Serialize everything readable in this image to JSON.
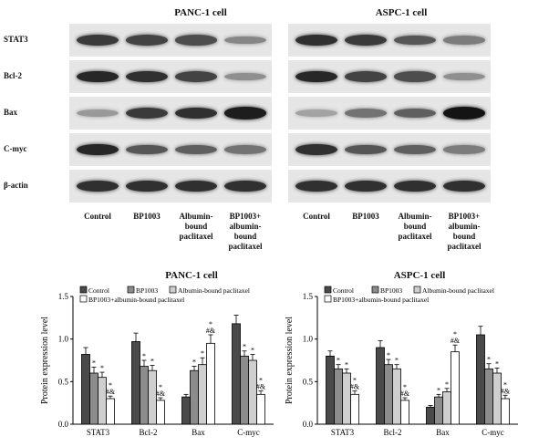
{
  "blots": [
    {
      "title": "PANC-1 cell",
      "rows": [
        {
          "label": "STAT3",
          "bands": [
            0.75,
            0.7,
            0.65,
            0.35
          ]
        },
        {
          "label": "Bcl-2",
          "bands": [
            0.85,
            0.8,
            0.7,
            0.3
          ]
        },
        {
          "label": "Bax",
          "bands": [
            0.25,
            0.75,
            0.8,
            0.9
          ]
        },
        {
          "label": "C-myc",
          "bands": [
            0.85,
            0.6,
            0.55,
            0.45
          ]
        },
        {
          "label": "β-actin",
          "bands": [
            0.8,
            0.8,
            0.8,
            0.8
          ]
        }
      ],
      "lanes": [
        "Control",
        "BP1003",
        "Albumin-\nbound\npaclitaxel",
        "BP1003+\nalbumin-\nbound\npaclitaxel"
      ]
    },
    {
      "title": "ASPC-1 cell",
      "rows": [
        {
          "label": "STAT3",
          "bands": [
            0.8,
            0.75,
            0.6,
            0.4
          ]
        },
        {
          "label": "Bcl-2",
          "bands": [
            0.85,
            0.7,
            0.65,
            0.3
          ]
        },
        {
          "label": "Bax",
          "bands": [
            0.2,
            0.45,
            0.55,
            0.95
          ]
        },
        {
          "label": "C-myc",
          "bands": [
            0.8,
            0.6,
            0.55,
            0.4
          ]
        },
        {
          "label": "β-actin",
          "bands": [
            0.8,
            0.8,
            0.8,
            0.8
          ]
        }
      ],
      "lanes": [
        "Control",
        "BP1003",
        "Albumin-\nbound\npaclitaxel",
        "BP1003+\nalbumin-\nbound\npaclitaxel"
      ]
    }
  ],
  "chart_data": [
    {
      "type": "bar",
      "title": "PANC-1 cell",
      "ylabel": "Protein expression level",
      "ylim": [
        0,
        1.5
      ],
      "yticks": [
        "0.0",
        "0.5",
        "1.0",
        "1.5"
      ],
      "categories": [
        "STAT3",
        "Bcl-2",
        "Bax",
        "C-myc"
      ],
      "series": [
        {
          "name": "Control",
          "color": "#4a4a4a",
          "values": [
            0.82,
            0.97,
            0.32,
            1.18
          ],
          "errors": [
            0.08,
            0.1,
            0.03,
            0.1
          ]
        },
        {
          "name": "BP1003",
          "color": "#8c8c8c",
          "values": [
            0.6,
            0.68,
            0.63,
            0.8
          ],
          "errors": [
            0.07,
            0.07,
            0.05,
            0.06
          ]
        },
        {
          "name": "Albumin-bound paclitaxel",
          "color": "#cfcfcf",
          "values": [
            0.55,
            0.63,
            0.7,
            0.75
          ],
          "errors": [
            0.06,
            0.06,
            0.08,
            0.07
          ]
        },
        {
          "name": "BP1003+albumin-bound paclitaxel",
          "color": "#ffffff",
          "values": [
            0.3,
            0.28,
            0.95,
            0.35
          ],
          "errors": [
            0.03,
            0.03,
            0.1,
            0.04
          ]
        }
      ],
      "annotations": [
        [
          "",
          "*",
          "*",
          "*\n#&"
        ],
        [
          "",
          "*",
          "*",
          "*\n#&"
        ],
        [
          "",
          "*",
          "*",
          "*\n#&"
        ],
        [
          "",
          "*",
          "*",
          "*\n#&"
        ]
      ],
      "legend": "top-left"
    },
    {
      "type": "bar",
      "title": "ASPC-1 cell",
      "ylabel": "Protein expression level",
      "ylim": [
        0,
        1.5
      ],
      "yticks": [
        "0.0",
        "0.5",
        "1.0",
        "1.5"
      ],
      "categories": [
        "STAT3",
        "Bcl-2",
        "Bax",
        "C-myc"
      ],
      "series": [
        {
          "name": "Control",
          "color": "#4a4a4a",
          "values": [
            0.8,
            0.9,
            0.2,
            1.05
          ],
          "errors": [
            0.06,
            0.08,
            0.02,
            0.1
          ]
        },
        {
          "name": "BP1003",
          "color": "#8c8c8c",
          "values": [
            0.65,
            0.7,
            0.32,
            0.65
          ],
          "errors": [
            0.05,
            0.06,
            0.03,
            0.06
          ]
        },
        {
          "name": "Albumin-bound paclitaxel",
          "color": "#cfcfcf",
          "values": [
            0.6,
            0.65,
            0.38,
            0.6
          ],
          "errors": [
            0.05,
            0.05,
            0.04,
            0.06
          ]
        },
        {
          "name": "BP1003+albumin-bound paclitaxel",
          "color": "#ffffff",
          "values": [
            0.35,
            0.28,
            0.85,
            0.3
          ],
          "errors": [
            0.04,
            0.03,
            0.08,
            0.04
          ]
        }
      ],
      "annotations": [
        [
          "",
          "*",
          "*",
          "*\n#&"
        ],
        [
          "",
          "*",
          "*",
          "*\n#&"
        ],
        [
          "",
          "*",
          "*",
          "*\n#&"
        ],
        [
          "",
          "*",
          "*",
          "*\n#&"
        ]
      ],
      "legend": "top-left"
    }
  ]
}
